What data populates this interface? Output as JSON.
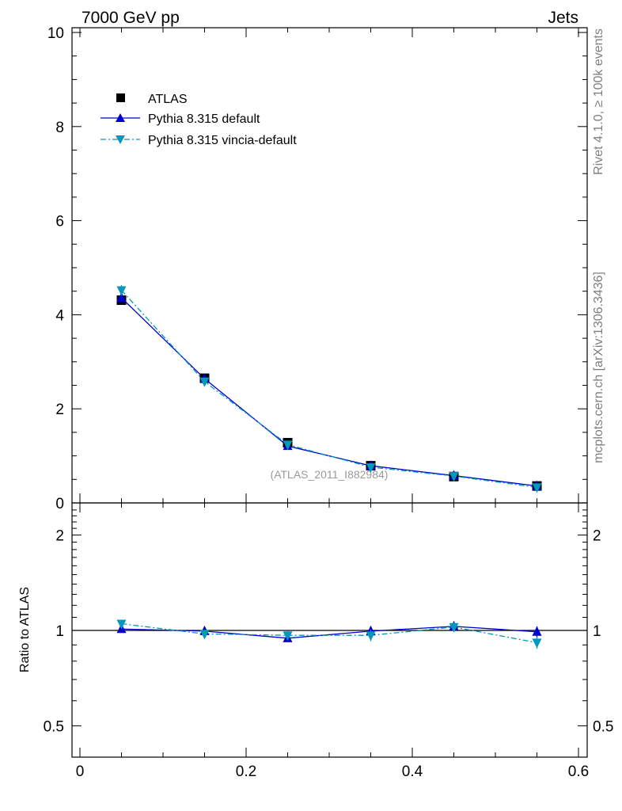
{
  "header": {
    "left_title": "7000 GeV pp",
    "right_title": "Jets"
  },
  "side_labels": {
    "rivet": "Rivet 4.1.0, ≥ 100k events",
    "mcplots": "mcplots.cern.ch [arXiv:1306.3436]"
  },
  "watermark": "(ATLAS_2011_I882984)",
  "colors": {
    "atlas": "#000000",
    "default": "#0000cc",
    "vincia": "#0099bb"
  },
  "chart_data": [
    {
      "type": "line",
      "panel": "main",
      "x": [
        0.05,
        0.15,
        0.25,
        0.35,
        0.45,
        0.55
      ],
      "xlim": [
        -0.01,
        0.6
      ],
      "ylim": [
        0,
        10.2
      ],
      "ticks_y": [
        0,
        2,
        4,
        6,
        8,
        10
      ],
      "tick_labels_y": [
        "0",
        "2",
        "4",
        "6",
        "8",
        "10"
      ],
      "legend": {
        "placement": "top-left"
      },
      "series": [
        {
          "name": "ATLAS",
          "marker": "square",
          "values": [
            4.31,
            2.65,
            1.28,
            0.79,
            0.56,
            0.36
          ],
          "errors": [
            0.06,
            0.04,
            0.03,
            0.02,
            0.02,
            0.02
          ]
        },
        {
          "name": "Pythia 8.315 default",
          "marker": "triangle-up",
          "values": [
            4.36,
            2.64,
            1.21,
            0.79,
            0.58,
            0.36
          ],
          "errors": [
            0.05,
            0.04,
            0.03,
            0.02,
            0.02,
            0.02
          ]
        },
        {
          "name": "Pythia 8.315 vincia-default",
          "marker": "triangle-down",
          "values": [
            4.52,
            2.58,
            1.24,
            0.76,
            0.57,
            0.33
          ],
          "errors": [
            0.11,
            0.08,
            0.05,
            0.03,
            0.02,
            0.02
          ]
        }
      ]
    },
    {
      "type": "line",
      "panel": "ratio",
      "ylabel": "Ratio to ATLAS",
      "x": [
        0.05,
        0.15,
        0.25,
        0.35,
        0.45,
        0.55
      ],
      "xlabel_ticks": [
        "0",
        "0.2",
        "0.4",
        "0.6"
      ],
      "ticks_y": [
        0.5,
        1,
        2
      ],
      "tick_labels_y": [
        "0.5",
        "1",
        "2"
      ],
      "reference": 1,
      "series": [
        {
          "name": "Pythia 8.315 default",
          "values": [
            1.01,
            0.995,
            0.945,
            0.995,
            1.03,
            0.99
          ],
          "errors": [
            0.02,
            0.03,
            0.025,
            0.035,
            0.03,
            0.04
          ]
        },
        {
          "name": "Pythia 8.315 vincia-default",
          "values": [
            1.05,
            0.975,
            0.965,
            0.965,
            1.025,
            0.915
          ],
          "errors": [
            0.025,
            0.03,
            0.03,
            0.04,
            0.035,
            0.04
          ]
        }
      ]
    }
  ]
}
